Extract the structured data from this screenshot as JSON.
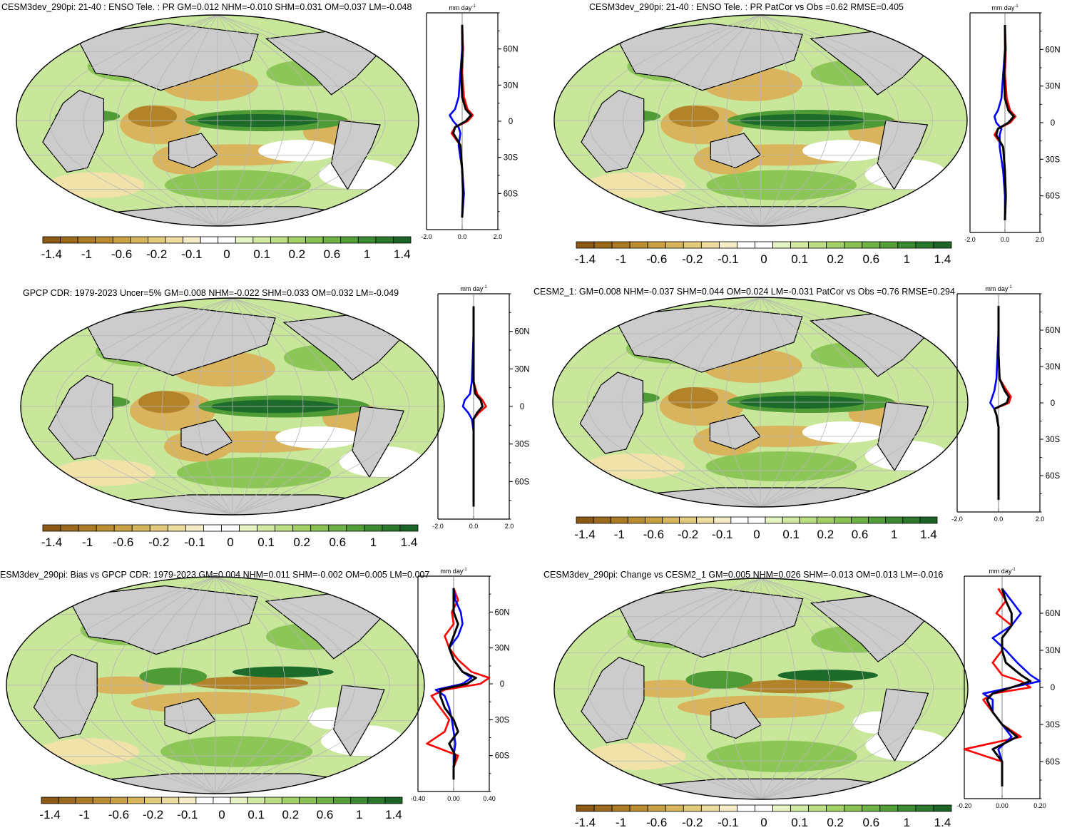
{
  "palette": {
    "brown3": "#8c5a14",
    "brown2": "#b3832a",
    "brown1": "#d9b45c",
    "tan": "#f0e2a8",
    "white": "#ffffff",
    "green1": "#c9e79a",
    "green2": "#8cc657",
    "green3": "#4f9c37",
    "green4": "#1d6b2a",
    "land": "#cccccc",
    "grid": "#b5b5b5",
    "obs_line": "#ff0000",
    "model_line": "#0000ff",
    "zonal_line": "#000000"
  },
  "colorbar": {
    "labels": [
      "-1.4",
      "-1",
      "-0.6",
      "-0.2",
      "-0.1",
      "0",
      "0.1",
      "0.2",
      "0.6",
      "1",
      "1.4"
    ],
    "colors": [
      "#8c5a14",
      "#9b6a1c",
      "#ab7b25",
      "#bb8d33",
      "#c9a145",
      "#d6b65c",
      "#e2ca7c",
      "#ecdc9f",
      "#f5ecc6",
      "#ffffff",
      "#ffffff",
      "#e6f3c2",
      "#d2e9a2",
      "#bbdd83",
      "#a3d067",
      "#89c152",
      "#6eb144",
      "#539e39",
      "#3c8a31",
      "#2b772b",
      "#1c6426"
    ]
  },
  "profile_labels": {
    "unit": "mm day",
    "unit_sup": "-1",
    "lat_ticks": [
      "60N",
      "30N",
      "0",
      "30S",
      "60S"
    ]
  },
  "panels": [
    {
      "title": "CESM3dev_290pi: 21-40 : ENSO Tele. : PR GM=0.012 NHM=-0.010 SHM=0.031 OM=0.037 LM=-0.048",
      "xticks": [
        "-2.0",
        "0.0",
        "2.0"
      ],
      "xlim": [
        -2.0,
        2.0
      ]
    },
    {
      "title": "CESM3dev_290pi: 21-40 : ENSO Tele. : PR PatCor vs Obs =0.62 RMSE=0.405",
      "xticks": [
        "-2.0",
        "0.0",
        "2.0"
      ],
      "xlim": [
        -2.0,
        2.0
      ]
    },
    {
      "title": "GPCP CDR: 1979-2023 Uncer=5% GM=0.008 NHM=-0.022 SHM=0.033 OM=0.032 LM=-0.049",
      "xticks": [
        "-2.0",
        "0.0",
        "2.0"
      ],
      "xlim": [
        -2.0,
        2.0
      ]
    },
    {
      "title": "CESM2_1: GM=0.008 NHM=-0.037 SHM=0.044 OM=0.024 LM=-0.031 PatCor vs Obs =0.76 RMSE=0.294",
      "xticks": [
        "-2.0",
        "0.0",
        "2.0"
      ],
      "xlim": [
        -2.0,
        2.0
      ]
    },
    {
      "title": "ESM3dev_290pi: Bias vs GPCP CDR: 1979-2023 GM=0.004 NHM=0.011 SHM=-0.002 OM=0.005 LM=0.007",
      "xticks": [
        "-0.40",
        "0.00",
        "0.40"
      ],
      "xlim": [
        -0.4,
        0.4
      ]
    },
    {
      "title": "CESM3dev_290pi: Change vs CESM2_1 GM=0.005 NHM=0.026 SHM=-0.013 OM=0.013 LM=-0.016",
      "xticks": [
        "-0.20",
        "0.00",
        "0.20"
      ],
      "xlim": [
        -0.2,
        0.2
      ]
    }
  ],
  "chart_data": [
    {
      "type": "line",
      "title": "CESM3dev_290pi: 21-40 : ENSO Tele. : PR GM=0.012 NHM=-0.010 SHM=0.031 OM=0.037 LM=-0.048",
      "xlim": [
        -2.0,
        2.0
      ],
      "ylim": [
        -90,
        90
      ],
      "ylabel": "mm day-1",
      "y": [
        80,
        60,
        40,
        20,
        10,
        5,
        0,
        -5,
        -10,
        -20,
        -40,
        -60,
        -80
      ],
      "series": [
        {
          "values": [
            0.0,
            0.05,
            0.0,
            0.1,
            0.3,
            0.6,
            0.3,
            -0.4,
            -0.6,
            -0.1,
            0.0,
            0.05,
            0.0
          ]
        },
        {
          "values": [
            0.0,
            0.0,
            -0.1,
            -0.2,
            -0.4,
            -0.7,
            -0.5,
            -0.2,
            -0.1,
            -0.2,
            0.0,
            0.1,
            0.0
          ]
        },
        {
          "values": [
            0.0,
            0.02,
            -0.05,
            0.0,
            0.2,
            0.5,
            0.2,
            -0.4,
            -0.5,
            -0.1,
            0.0,
            0.05,
            0.0
          ]
        }
      ]
    },
    {
      "type": "line",
      "title": "CESM3dev_290pi: 21-40 : ENSO Tele. : PR PatCor vs Obs =0.62 RMSE=0.405",
      "xlim": [
        -2.0,
        2.0
      ],
      "ylim": [
        -90,
        90
      ],
      "ylabel": "mm day-1",
      "y": [
        80,
        60,
        40,
        20,
        10,
        5,
        0,
        -5,
        -10,
        -20,
        -40,
        -60,
        -80
      ],
      "series": [
        {
          "values": [
            0.0,
            0.05,
            0.0,
            0.1,
            0.3,
            0.6,
            0.3,
            -0.4,
            -0.6,
            -0.1,
            0.0,
            0.05,
            0.0
          ]
        },
        {
          "values": [
            0.0,
            0.0,
            -0.1,
            -0.2,
            -0.4,
            -0.6,
            -0.5,
            -0.2,
            -0.3,
            -0.3,
            -0.1,
            0.0,
            0.0
          ]
        },
        {
          "values": [
            0.0,
            0.02,
            -0.05,
            0.0,
            0.2,
            0.5,
            0.2,
            -0.4,
            -0.5,
            -0.1,
            0.0,
            0.05,
            0.0
          ]
        }
      ]
    },
    {
      "type": "line",
      "title": "GPCP CDR: 1979-2023 Uncer=5% GM=0.008 NHM=-0.022 SHM=0.033 OM=0.032 LM=-0.049",
      "xlim": [
        -2.0,
        2.0
      ],
      "ylim": [
        -90,
        90
      ],
      "ylabel": "mm day-1",
      "y": [
        80,
        60,
        40,
        20,
        10,
        5,
        0,
        -5,
        -10,
        -20,
        -40,
        -60,
        -80
      ],
      "series": [
        {
          "values": [
            0.0,
            0.0,
            0.0,
            0.0,
            0.2,
            0.5,
            0.7,
            0.3,
            0.0,
            0.0,
            0.0,
            0.0,
            0.0
          ]
        },
        {
          "values": [
            0.0,
            0.0,
            -0.05,
            -0.1,
            -0.2,
            -0.5,
            -0.6,
            -0.3,
            -0.1,
            0.0,
            0.0,
            0.0,
            0.0
          ]
        },
        {
          "values": [
            0.0,
            0.0,
            0.0,
            0.0,
            0.1,
            0.4,
            0.5,
            0.2,
            0.0,
            0.0,
            0.0,
            0.0,
            0.0
          ]
        }
      ]
    },
    {
      "type": "line",
      "title": "CESM2_1: GM=0.008 NHM=-0.037 SHM=0.044 OM=0.024 LM=-0.031 PatCor vs Obs =0.76 RMSE=0.294",
      "xlim": [
        -2.0,
        2.0
      ],
      "ylim": [
        -90,
        90
      ],
      "ylabel": "mm day-1",
      "y": [
        80,
        60,
        40,
        20,
        10,
        5,
        0,
        -5,
        -10,
        -20,
        -40,
        -60,
        -80
      ],
      "series": [
        {
          "values": [
            0.0,
            0.0,
            0.0,
            0.05,
            0.4,
            0.6,
            0.5,
            -0.2,
            -0.1,
            0.0,
            0.0,
            0.0,
            0.0
          ]
        },
        {
          "values": [
            0.0,
            0.0,
            -0.05,
            -0.1,
            -0.2,
            -0.3,
            -0.4,
            -0.2,
            -0.1,
            0.0,
            0.0,
            0.0,
            0.0
          ]
        },
        {
          "values": [
            0.0,
            0.0,
            0.0,
            0.05,
            0.3,
            0.5,
            0.4,
            -0.2,
            -0.1,
            0.0,
            0.0,
            0.0,
            0.0
          ]
        }
      ]
    },
    {
      "type": "line",
      "title": "ESM3dev_290pi: Bias vs GPCP CDR: 1979-2023 GM=0.004 NHM=0.011 SHM=-0.002 OM=0.005 LM=0.007",
      "xlim": [
        -0.4,
        0.4
      ],
      "ylim": [
        -90,
        90
      ],
      "ylabel": "mm day-1",
      "y": [
        80,
        70,
        60,
        50,
        40,
        30,
        20,
        10,
        5,
        0,
        -5,
        -10,
        -20,
        -30,
        -40,
        -50,
        -60,
        -70,
        -80
      ],
      "series": [
        {
          "values": [
            0.0,
            0.05,
            -0.02,
            0.0,
            -0.1,
            -0.05,
            0.05,
            0.2,
            0.4,
            0.3,
            -0.1,
            -0.25,
            -0.15,
            -0.05,
            -0.1,
            -0.3,
            0.05,
            0.0,
            0.0
          ]
        },
        {
          "values": [
            0.0,
            0.02,
            0.08,
            0.1,
            0.05,
            -0.05,
            0.0,
            0.1,
            0.2,
            0.1,
            -0.2,
            -0.1,
            -0.05,
            -0.02,
            0.0,
            0.02,
            0.0,
            0.0,
            0.0
          ]
        },
        {
          "values": [
            0.0,
            0.0,
            0.0,
            0.05,
            0.0,
            -0.05,
            0.0,
            0.1,
            0.25,
            0.15,
            -0.15,
            -0.15,
            -0.1,
            0.0,
            0.05,
            -0.05,
            0.02,
            0.0,
            0.0
          ]
        }
      ]
    },
    {
      "type": "line",
      "title": "CESM3dev_290pi: Change vs CESM2_1 GM=0.005 NHM=0.026 SHM=-0.013 OM=0.013 LM=-0.016",
      "xlim": [
        -0.2,
        0.2
      ],
      "ylim": [
        -90,
        90
      ],
      "ylabel": "mm day-1",
      "y": [
        80,
        70,
        60,
        50,
        40,
        30,
        20,
        10,
        5,
        0,
        -5,
        -10,
        -20,
        -30,
        -40,
        -50,
        -60,
        -70,
        -80
      ],
      "series": [
        {
          "values": [
            -0.02,
            0.02,
            -0.03,
            0.05,
            0.0,
            0.0,
            -0.05,
            0.0,
            0.1,
            0.15,
            -0.05,
            -0.1,
            -0.05,
            0.0,
            0.1,
            -0.2,
            0.0,
            0.0,
            0.0
          ]
        },
        {
          "values": [
            0.0,
            0.05,
            0.1,
            0.05,
            -0.05,
            0.02,
            0.08,
            0.15,
            0.2,
            0.05,
            -0.1,
            -0.05,
            -0.05,
            0.0,
            0.05,
            -0.02,
            0.0,
            0.0,
            0.0
          ]
        },
        {
          "values": [
            0.0,
            0.02,
            0.05,
            0.05,
            0.0,
            0.0,
            0.02,
            0.1,
            0.15,
            0.05,
            -0.05,
            -0.08,
            -0.05,
            0.0,
            0.08,
            -0.05,
            0.0,
            0.0,
            0.0
          ]
        }
      ]
    }
  ]
}
